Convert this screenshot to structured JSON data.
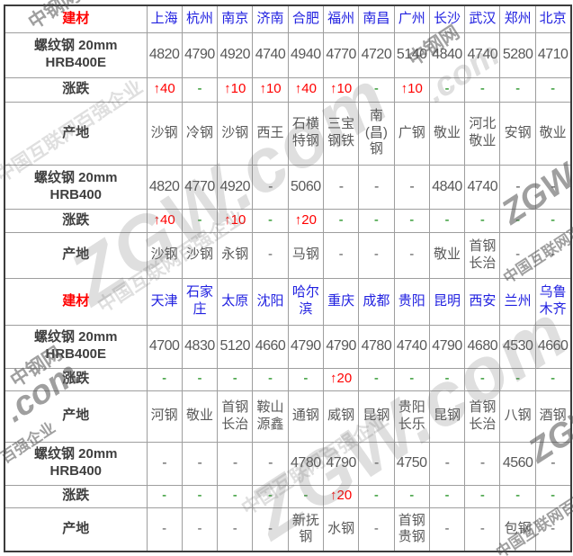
{
  "watermark": {
    "brand_en": "ZGW.com",
    "brand_zh": "中钢网",
    "slogan": "中国互联网百强企业",
    "slogan_short": "百强企业",
    "dot_com": ".com",
    "zqw": "ZGW"
  },
  "colors": {
    "header_red": "#ff0000",
    "city_blue": "#2121e0",
    "value_gray": "#595959",
    "change_up_red": "#ff0000",
    "change_flat_green": "#008000"
  },
  "chart_data": [
    {
      "type": "table",
      "corner_label": "建材",
      "columns": [
        "上海",
        "杭州",
        "南京",
        "济南",
        "合肥",
        "福州",
        "南昌",
        "广州",
        "长沙",
        "武汉",
        "郑州",
        "北京"
      ],
      "rows": [
        {
          "label": "螺纹钢 20mm\nHRB400E",
          "kind": "price",
          "values": [
            "4820",
            "4790",
            "4920",
            "4740",
            "4940",
            "4770",
            "4720",
            "5140",
            "4840",
            "4740",
            "5280",
            "4710"
          ]
        },
        {
          "label": "涨跌",
          "kind": "change",
          "values": [
            "↑40",
            "-",
            "↑10",
            "↑10",
            "↑40",
            "↑10",
            "-",
            "↑10",
            "-",
            "-",
            "-",
            "-"
          ]
        },
        {
          "label": "产地",
          "kind": "origin",
          "values": [
            "沙钢",
            "冷钢",
            "沙钢",
            "西王",
            "石横特钢",
            "三宝钢铁",
            "南(昌)钢",
            "广钢",
            "敬业",
            "河北敬业",
            "安钢",
            "敬业"
          ]
        },
        {
          "label": "螺纹钢 20mm\nHRB400",
          "kind": "price",
          "values": [
            "4820",
            "4770",
            "4920",
            "-",
            "5060",
            "-",
            "-",
            "-",
            "4840",
            "4740",
            "-",
            "-"
          ]
        },
        {
          "label": "涨跌",
          "kind": "change",
          "values": [
            "↑40",
            "-",
            "↑10",
            "-",
            "↑20",
            "-",
            "-",
            "-",
            "-",
            "-",
            "-",
            "-"
          ]
        },
        {
          "label": "产地",
          "kind": "origin",
          "values": [
            "沙钢",
            "沙钢",
            "永钢",
            "-",
            "马钢",
            "-",
            "-",
            "-",
            "敬业",
            "首钢长治",
            "-",
            "-"
          ]
        }
      ]
    },
    {
      "type": "table",
      "corner_label": "建材",
      "columns": [
        "天津",
        "石家庄",
        "太原",
        "沈阳",
        "哈尔滨",
        "重庆",
        "成都",
        "贵阳",
        "昆明",
        "西安",
        "兰州",
        "乌鲁木齐"
      ],
      "rows": [
        {
          "label": "螺纹钢 20mm\nHRB400E",
          "kind": "price",
          "values": [
            "4700",
            "4830",
            "5120",
            "4660",
            "4790",
            "4790",
            "4780",
            "4740",
            "4790",
            "4680",
            "4530",
            "4660"
          ]
        },
        {
          "label": "涨跌",
          "kind": "change",
          "values": [
            "-",
            "-",
            "-",
            "-",
            "-",
            "↑20",
            "-",
            "-",
            "-",
            "-",
            "-",
            "-"
          ]
        },
        {
          "label": "产地",
          "kind": "origin",
          "values": [
            "河钢",
            "敬业",
            "首钢长治",
            "鞍山源鑫",
            "通钢",
            "威钢",
            "昆钢",
            "贵阳长乐",
            "昆钢",
            "首钢长治",
            "八钢",
            "酒钢"
          ]
        },
        {
          "label": "螺纹钢 20mm\nHRB400",
          "kind": "price",
          "values": [
            "-",
            "-",
            "-",
            "-",
            "4780",
            "4790",
            "-",
            "4750",
            "-",
            "-",
            "4560",
            "-"
          ]
        },
        {
          "label": "涨跌",
          "kind": "change",
          "values": [
            "-",
            "-",
            "-",
            "-",
            "-",
            "↑20",
            "-",
            "-",
            "-",
            "-",
            "-",
            "-"
          ]
        },
        {
          "label": "产地",
          "kind": "origin",
          "values": [
            "-",
            "-",
            "-",
            "-",
            "新抚钢",
            "水钢",
            "-",
            "首钢贵钢",
            "-",
            "-",
            "包钢",
            "-"
          ]
        }
      ]
    }
  ]
}
